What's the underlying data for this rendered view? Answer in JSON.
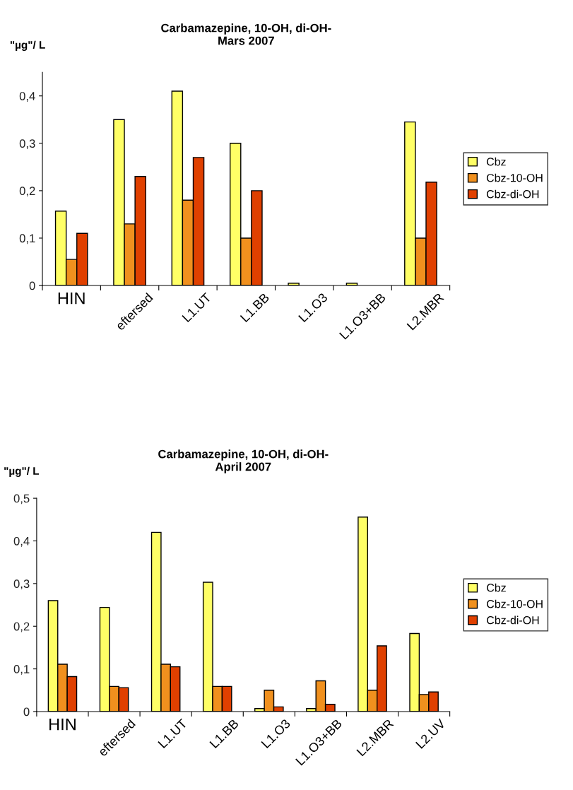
{
  "chart_data": [
    {
      "type": "bar",
      "title": "Carbamazepine, 10-OH, di-OH-\nMars 2007",
      "ylabel": "\"µg\"/ L",
      "categories": [
        "HIN",
        "eftersed",
        "L1.UT",
        "L1.BB",
        "L1.O3",
        "L1.O3+BB",
        "L2.MBR"
      ],
      "series": [
        {
          "name": "Cbz",
          "color": "#ffff66",
          "values": [
            0.157,
            0.35,
            0.41,
            0.3,
            0.005,
            0.005,
            0.345
          ]
        },
        {
          "name": "Cbz-10-OH",
          "color": "#f0901e",
          "values": [
            0.055,
            0.13,
            0.18,
            0.1,
            null,
            null,
            0.1
          ]
        },
        {
          "name": "Cbz-di-OH",
          "color": "#e04000",
          "values": [
            0.11,
            0.23,
            0.27,
            0.2,
            null,
            null,
            0.218
          ]
        }
      ],
      "ylim": [
        0,
        0.45
      ],
      "yticks": [
        0,
        {
          "value": 0.1,
          "label": "0,1"
        },
        {
          "value": 0.2,
          "label": "0,2"
        },
        {
          "value": 0.3,
          "label": "0,3"
        },
        {
          "value": 0.4,
          "label": "0,4"
        }
      ],
      "legend": "right",
      "grid": false
    },
    {
      "type": "bar",
      "title": "Carbamazepine, 10-OH, di-OH-\nApril 2007",
      "ylabel": "\"µg\"/ L",
      "categories": [
        "HIN",
        "eftersed",
        "L1.UT",
        "L1.BB",
        "L1.O3",
        "L1.O3+BB",
        "L2.MBR",
        "L2.UV"
      ],
      "series": [
        {
          "name": "Cbz",
          "color": "#ffff66",
          "values": [
            0.26,
            0.244,
            0.42,
            0.303,
            0.007,
            0.007,
            0.456,
            0.183
          ]
        },
        {
          "name": "Cbz-10-OH",
          "color": "#f0901e",
          "values": [
            0.111,
            0.059,
            0.111,
            0.059,
            0.05,
            0.072,
            0.05,
            0.04
          ]
        },
        {
          "name": "Cbz-di-OH",
          "color": "#e04000",
          "values": [
            0.082,
            0.056,
            0.105,
            0.059,
            0.011,
            0.017,
            0.154,
            0.046
          ]
        }
      ],
      "ylim": [
        0,
        0.5
      ],
      "yticks": [
        0,
        {
          "value": 0.1,
          "label": "0,1"
        },
        {
          "value": 0.2,
          "label": "0,2"
        },
        {
          "value": 0.3,
          "label": "0,3"
        },
        {
          "value": 0.4,
          "label": "0,4"
        },
        {
          "value": 0.5,
          "label": "0,5"
        }
      ],
      "legend": "right",
      "grid": false
    }
  ]
}
